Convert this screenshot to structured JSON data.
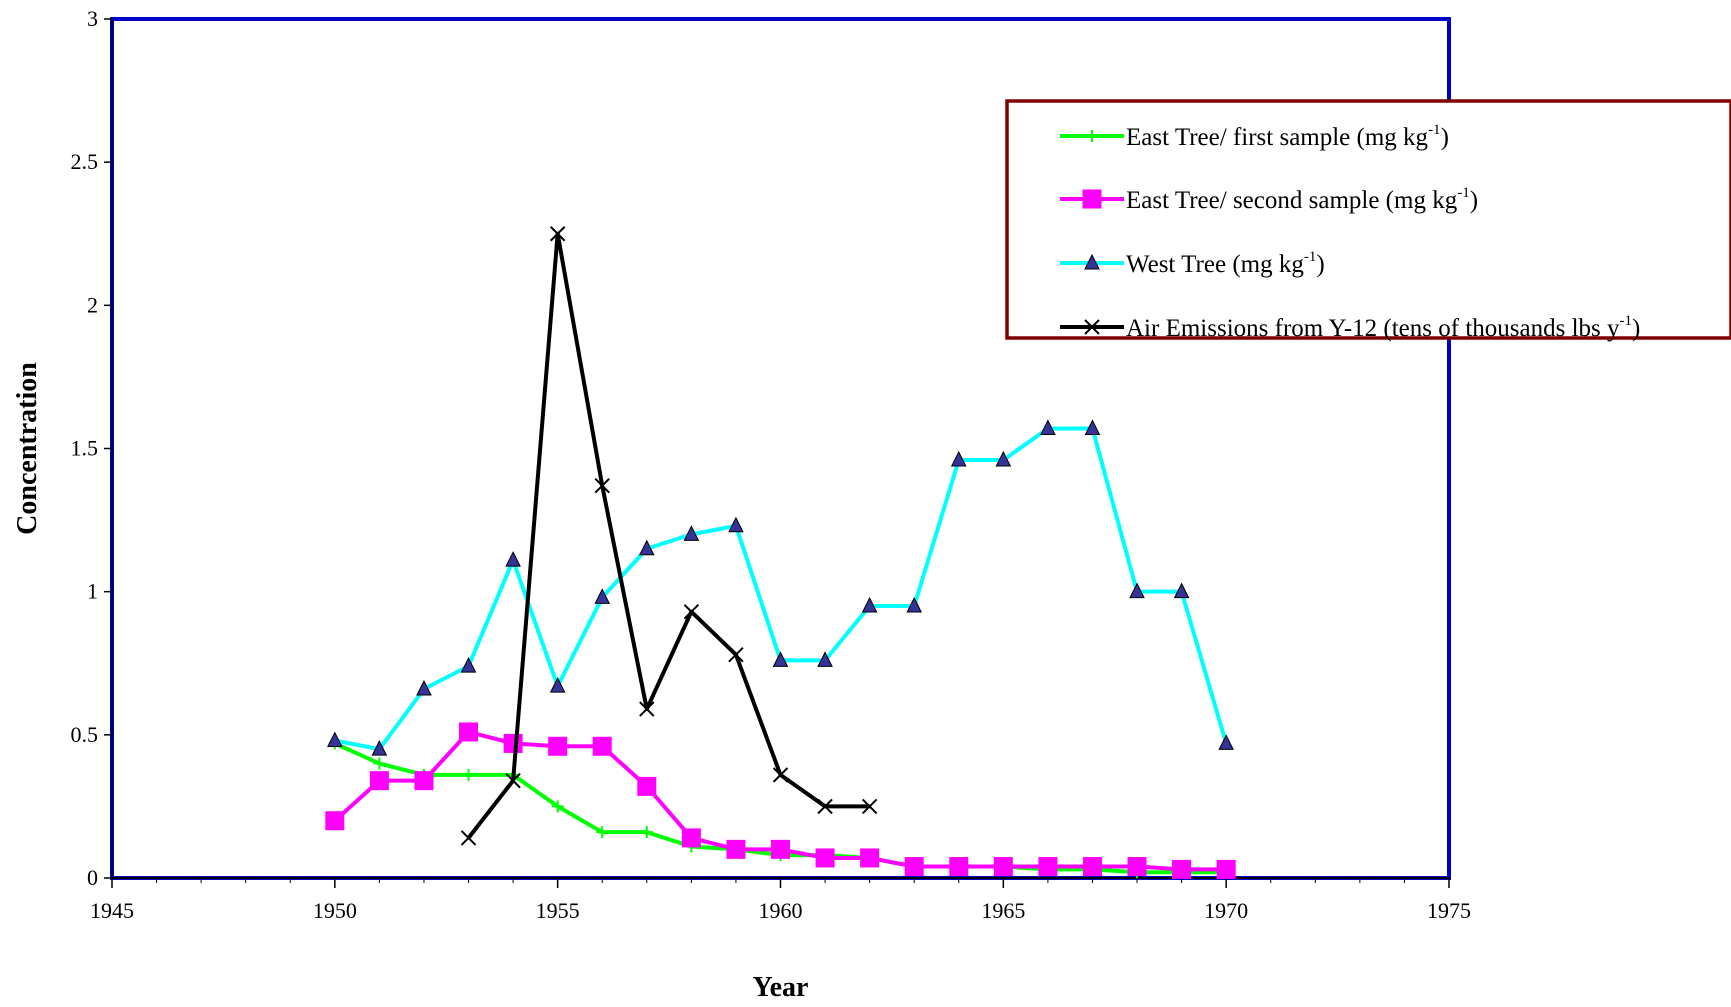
{
  "chart_data": {
    "type": "line",
    "title": "",
    "xlabel": "Year",
    "ylabel": "Concentration",
    "xlim": [
      1945,
      1975
    ],
    "ylim": [
      0,
      3
    ],
    "xticks": [
      1945,
      1950,
      1955,
      1960,
      1965,
      1970,
      1975
    ],
    "yticks": [
      0,
      0.5,
      1,
      1.5,
      2,
      2.5,
      3
    ],
    "xtick_labels": [
      "1945",
      "1950",
      "1955",
      "1960",
      "1965",
      "1970",
      "1975"
    ],
    "ytick_labels": [
      "0",
      "0.5",
      "1",
      "1.5",
      "2",
      "2.5",
      "3"
    ],
    "grid": false,
    "legend_position": "top-right",
    "plot_border_color": "#0000CC",
    "legend_border_color": "#800000",
    "series": [
      {
        "name": "East Tree/ first sample (mg kg-1)",
        "label_main": "East Tree/ first sample (mg kg",
        "label_sup": "-1",
        "label_end": ")",
        "color": "#00FF00",
        "marker": "plus",
        "x": [
          1950,
          1951,
          1952,
          1953,
          1954,
          1955,
          1956,
          1957,
          1958,
          1959,
          1960,
          1961,
          1962,
          1963,
          1964,
          1965,
          1966,
          1967,
          1968,
          1969,
          1970
        ],
        "y": [
          0.47,
          0.4,
          0.36,
          0.36,
          0.36,
          0.25,
          0.16,
          0.16,
          0.11,
          0.1,
          0.08,
          0.08,
          0.07,
          0.04,
          0.04,
          0.04,
          0.03,
          0.03,
          0.02,
          0.02,
          0.02
        ]
      },
      {
        "name": "East Tree/ second sample (mg kg-1)",
        "label_main": "East Tree/ second sample (mg kg",
        "label_sup": "-1",
        "label_end": ")",
        "color": "#FF00FF",
        "marker": "square",
        "x": [
          1950,
          1951,
          1952,
          1953,
          1954,
          1955,
          1956,
          1957,
          1958,
          1959,
          1960,
          1961,
          1962,
          1963,
          1964,
          1965,
          1966,
          1967,
          1968,
          1969,
          1970
        ],
        "y": [
          0.2,
          0.34,
          0.34,
          0.51,
          0.47,
          0.46,
          0.46,
          0.32,
          0.14,
          0.1,
          0.1,
          0.07,
          0.07,
          0.04,
          0.04,
          0.04,
          0.04,
          0.04,
          0.04,
          0.03,
          0.03
        ]
      },
      {
        "name": "West Tree (mg kg-1)",
        "label_main": "West Tree (mg kg",
        "label_sup": "-1",
        "label_end": ")",
        "color": "#00FFFF",
        "marker_fill": "#333399",
        "marker": "triangle",
        "x": [
          1950,
          1951,
          1952,
          1953,
          1954,
          1955,
          1956,
          1957,
          1958,
          1959,
          1960,
          1961,
          1962,
          1963,
          1964,
          1965,
          1966,
          1967,
          1968,
          1969,
          1970
        ],
        "y": [
          0.48,
          0.45,
          0.66,
          0.74,
          1.11,
          0.67,
          0.98,
          1.15,
          1.2,
          1.23,
          0.76,
          0.76,
          0.95,
          0.95,
          1.46,
          1.46,
          1.57,
          1.57,
          1.0,
          1.0,
          0.47
        ]
      },
      {
        "name": "Air Emissions from Y-12 (tens of thousands lbs y-1)",
        "label_main": "Air Emissions from Y-12 (tens of thousands lbs y",
        "label_sup": "-1",
        "label_end": ")",
        "color": "#000000",
        "marker": "x",
        "x": [
          1953,
          1954,
          1955,
          1956,
          1957,
          1958,
          1959,
          1960,
          1961,
          1962
        ],
        "y": [
          0.14,
          0.34,
          2.25,
          1.37,
          0.59,
          0.93,
          0.78,
          0.36,
          0.25,
          0.25
        ]
      }
    ]
  }
}
